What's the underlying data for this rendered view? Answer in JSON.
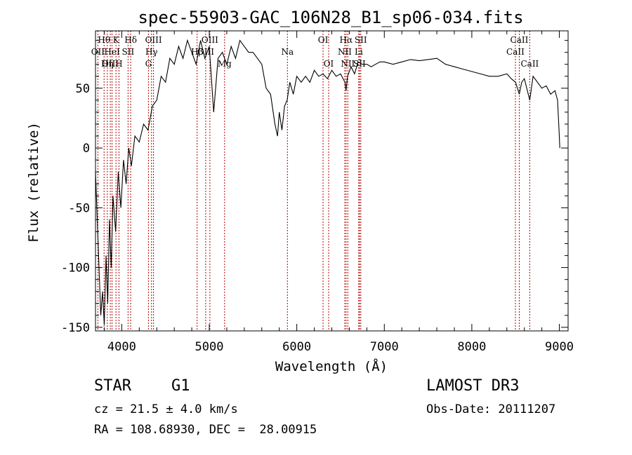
{
  "chart_data": {
    "type": "line",
    "title": "spec-55903-GAC_106N28_B1_sp06-034.fits",
    "xlabel": "Wavelength (Å)",
    "ylabel": "Flux (relative)",
    "xlim": [
      3700,
      9100
    ],
    "ylim": [
      -153,
      98
    ],
    "xticks": [
      4000,
      5000,
      6000,
      7000,
      8000,
      9000
    ],
    "yticks": [
      -150,
      -100,
      -50,
      0,
      50
    ],
    "series": [
      {
        "name": "flux",
        "x": [
          3700,
          3720,
          3740,
          3760,
          3780,
          3800,
          3820,
          3840,
          3860,
          3880,
          3900,
          3930,
          3960,
          3990,
          4020,
          4050,
          4080,
          4110,
          4150,
          4200,
          4250,
          4300,
          4350,
          4400,
          4450,
          4500,
          4550,
          4600,
          4650,
          4700,
          4750,
          4800,
          4850,
          4900,
          4950,
          5000,
          5050,
          5100,
          5150,
          5200,
          5250,
          5300,
          5350,
          5400,
          5450,
          5500,
          5550,
          5600,
          5650,
          5700,
          5750,
          5780,
          5800,
          5830,
          5860,
          5890,
          5920,
          5960,
          6000,
          6050,
          6100,
          6150,
          6200,
          6250,
          6300,
          6350,
          6400,
          6450,
          6500,
          6550,
          6563,
          6580,
          6620,
          6660,
          6700,
          6750,
          6800,
          6850,
          6900,
          6950,
          7000,
          7100,
          7200,
          7300,
          7400,
          7500,
          7600,
          7700,
          7800,
          7900,
          8000,
          8100,
          8200,
          8300,
          8400,
          8450,
          8500,
          8542,
          8570,
          8600,
          8662,
          8700,
          8750,
          8800,
          8850,
          8900,
          8950,
          8980,
          9000,
          9005
        ],
        "values": [
          -20,
          -60,
          -100,
          -140,
          -120,
          -148,
          -90,
          -130,
          -60,
          -100,
          -40,
          -70,
          -20,
          -50,
          -10,
          -30,
          0,
          -15,
          10,
          5,
          20,
          15,
          35,
          40,
          60,
          55,
          75,
          70,
          85,
          75,
          90,
          80,
          70,
          90,
          75,
          85,
          30,
          75,
          80,
          70,
          85,
          75,
          90,
          85,
          80,
          80,
          75,
          70,
          50,
          45,
          20,
          10,
          30,
          15,
          35,
          40,
          55,
          45,
          60,
          55,
          60,
          55,
          65,
          60,
          62,
          58,
          65,
          60,
          62,
          55,
          48,
          60,
          68,
          62,
          72,
          70,
          70,
          68,
          70,
          72,
          72,
          70,
          72,
          74,
          73,
          74,
          75,
          70,
          68,
          66,
          64,
          62,
          60,
          60,
          62,
          58,
          55,
          45,
          55,
          58,
          40,
          60,
          55,
          50,
          52,
          45,
          48,
          40,
          10,
          0
        ]
      }
    ],
    "spectral_lines": [
      {
        "label": "Hθ",
        "wl": 3798,
        "row": 1
      },
      {
        "label": "K",
        "wl": 3934,
        "row": 1
      },
      {
        "label": "Hδ",
        "wl": 4102,
        "row": 1
      },
      {
        "label": "OII",
        "wl": 3727,
        "row": 2
      },
      {
        "label": "HeI",
        "wl": 3889,
        "row": 2
      },
      {
        "label": "SII",
        "wl": 4072,
        "row": 2
      },
      {
        "label": "OIII",
        "wl": 3869,
        "row": 3
      },
      {
        "label": "Hη",
        "wl": 3835,
        "row": 3
      },
      {
        "label": "H",
        "wl": 3968,
        "row": 3
      },
      {
        "label": "OIII",
        "wl": 4363,
        "row": 1
      },
      {
        "label": "Hγ",
        "wl": 4340,
        "row": 2
      },
      {
        "label": "G",
        "wl": 4305,
        "row": 3
      },
      {
        "label": "OIII",
        "wl": 5007,
        "row": 1
      },
      {
        "label": "Hβ",
        "wl": 4861,
        "row": 2
      },
      {
        "label": "OIII",
        "wl": 4959,
        "row": 2
      },
      {
        "label": "Mg",
        "wl": 5175,
        "row": 3
      },
      {
        "label": "Na",
        "wl": 5893,
        "row": 2
      },
      {
        "label": "OI",
        "wl": 6300,
        "row": 1
      },
      {
        "label": "OI",
        "wl": 6364,
        "row": 3
      },
      {
        "label": "Hα",
        "wl": 6563,
        "row": 1
      },
      {
        "label": "SII",
        "wl": 6731,
        "row": 1
      },
      {
        "label": "NII",
        "wl": 6548,
        "row": 2
      },
      {
        "label": "Li",
        "wl": 6708,
        "row": 2
      },
      {
        "label": "NII",
        "wl": 6583,
        "row": 3
      },
      {
        "label": "SII",
        "wl": 6716,
        "row": 3
      },
      {
        "label": "CaII",
        "wl": 8542,
        "row": 1
      },
      {
        "label": "CaII",
        "wl": 8498,
        "row": 2
      },
      {
        "label": "CaII",
        "wl": 8662,
        "row": 3
      }
    ]
  },
  "footer": {
    "object_class": "STAR",
    "subclass": "G1",
    "survey": "LAMOST DR3",
    "redshift": "cz = 21.5 ± 4.0 km/s",
    "obs_date": "Obs-Date: 20111207",
    "coords": "RA = 108.68930, DEC =  28.00915"
  }
}
